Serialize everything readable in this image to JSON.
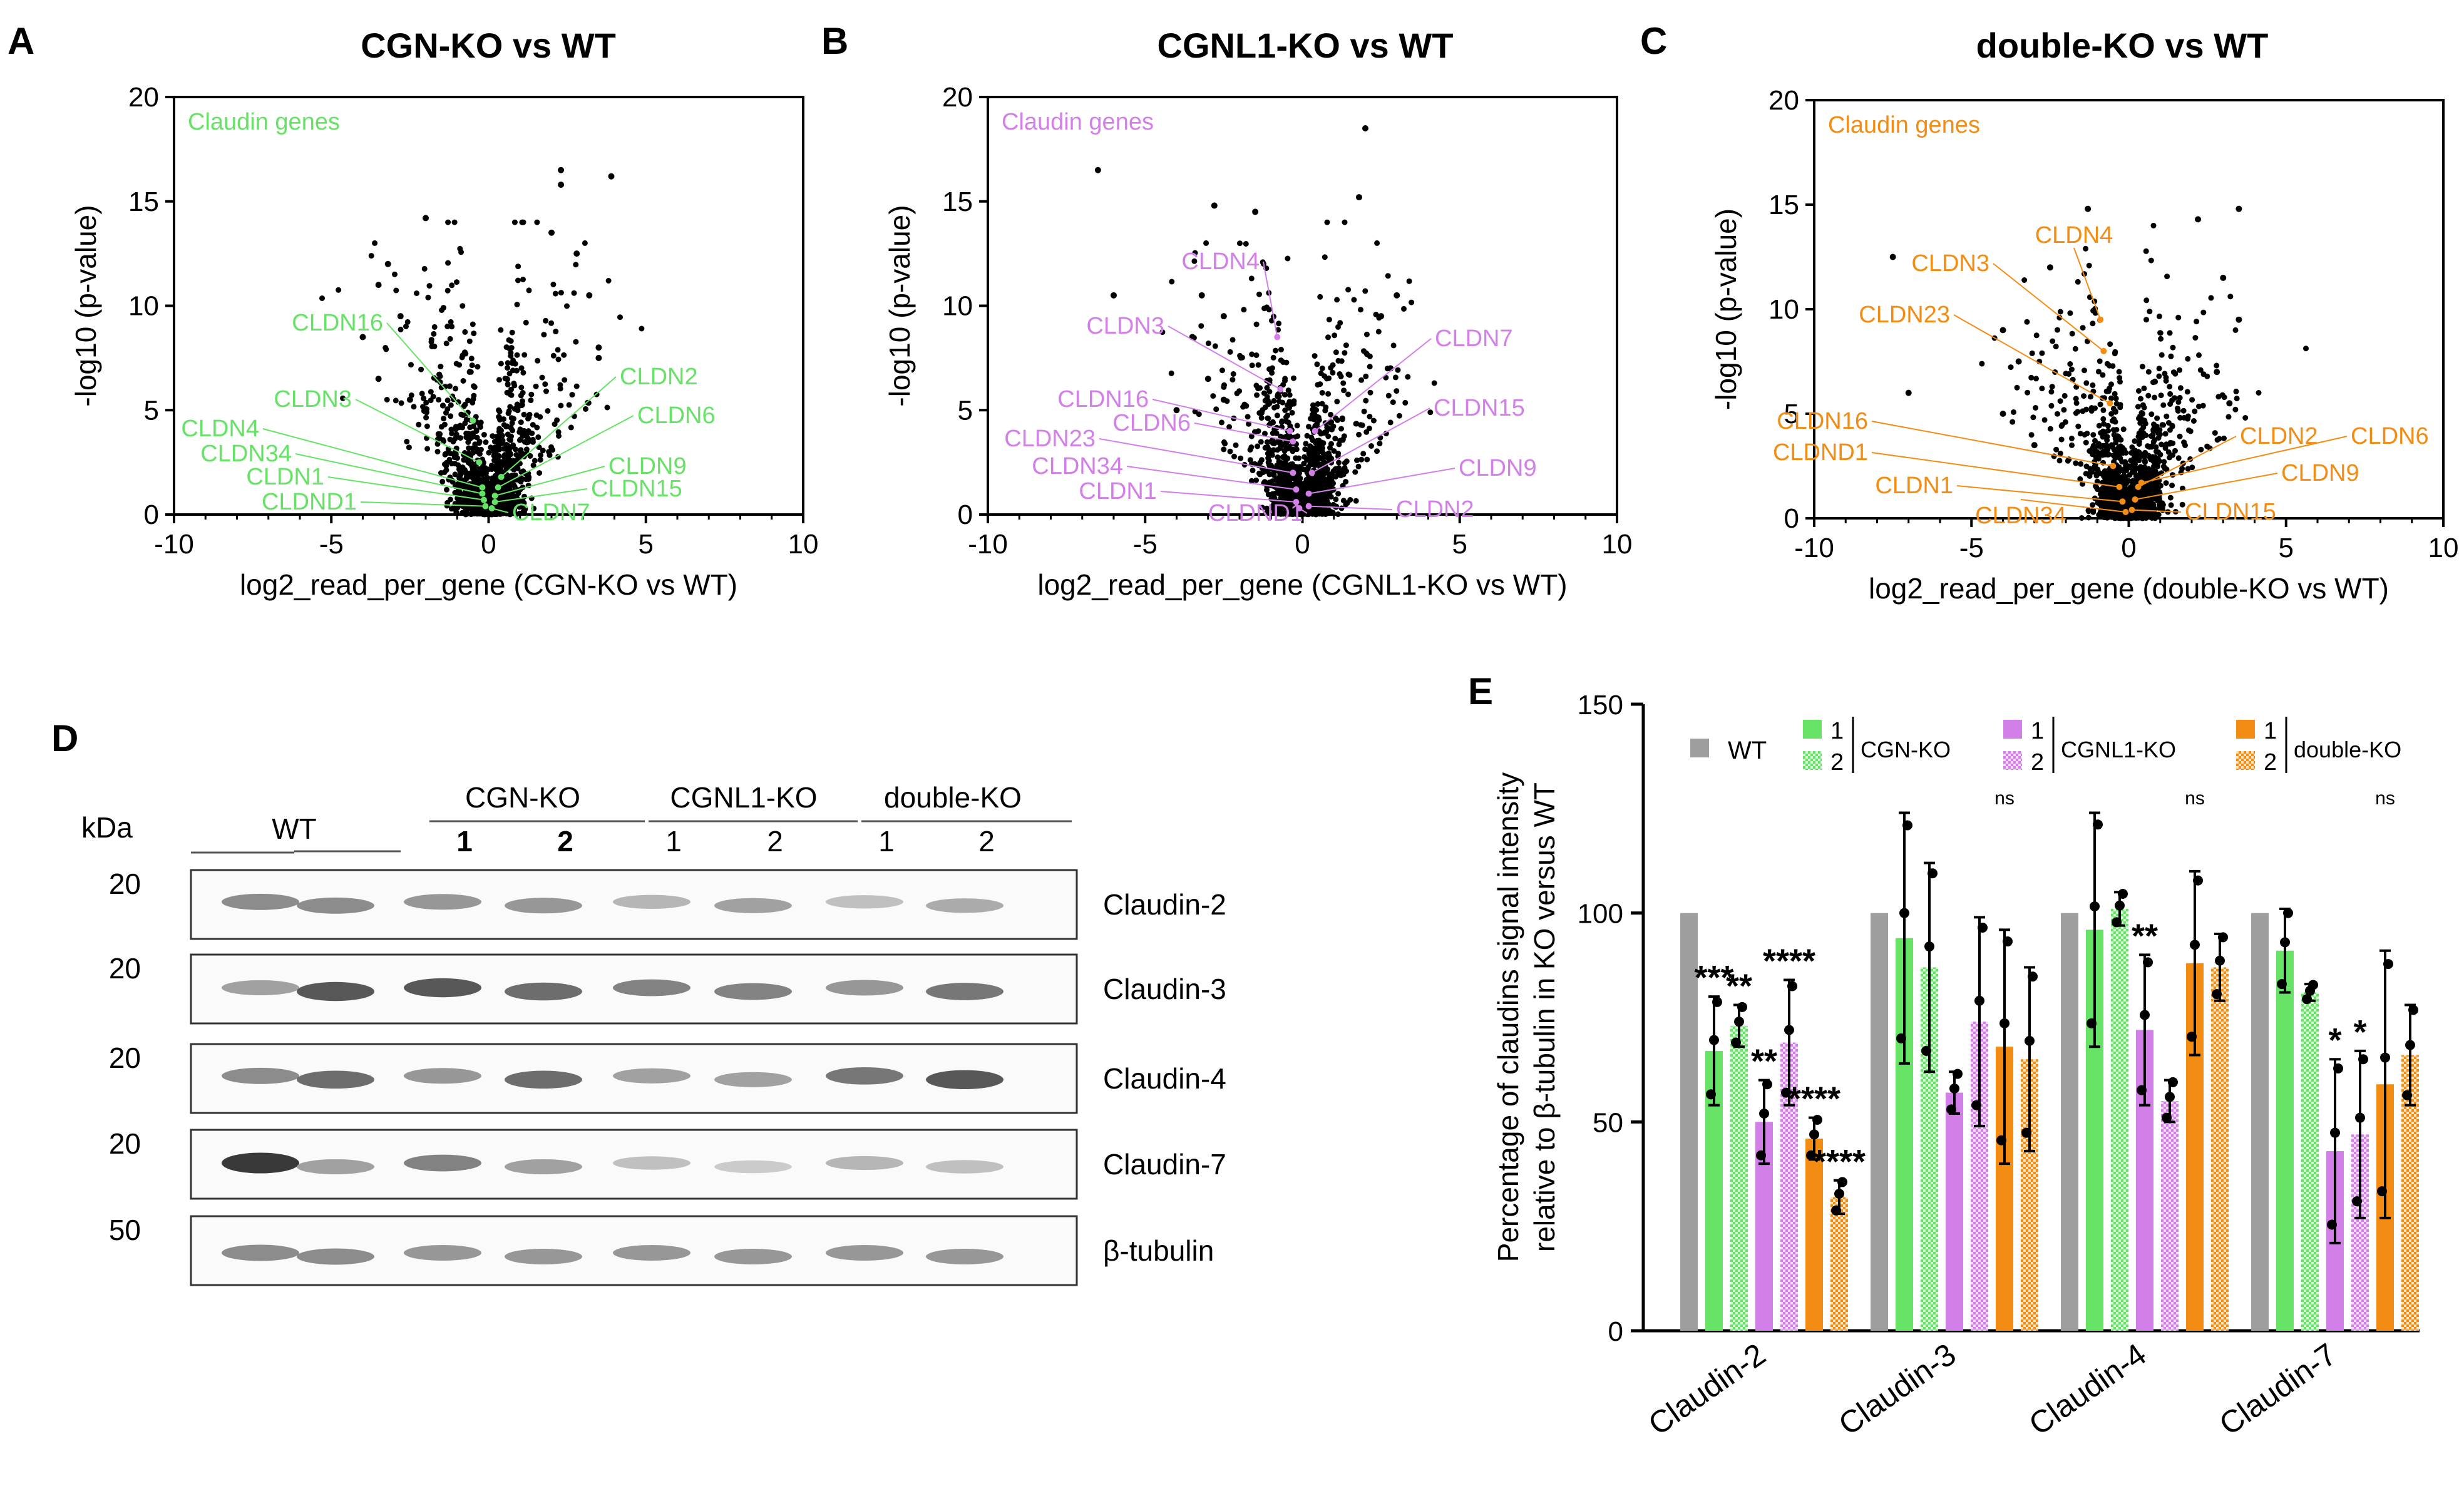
{
  "panels": {
    "A": "A",
    "B": "B",
    "C": "C",
    "D": "D",
    "E": "E"
  },
  "chart_data": [
    {
      "type": "scatter",
      "id": "A",
      "title": "CGN-KO vs WT",
      "xlabel": "log2_read_per_gene (CGN-KO vs WT)",
      "ylabel": "-log10 (p-value)",
      "xlim": [
        -10,
        10
      ],
      "ylim": [
        0,
        20
      ],
      "xticks": [
        -10,
        -5,
        0,
        5,
        10
      ],
      "yticks": [
        0,
        5,
        10,
        15,
        20
      ],
      "legend": "Claudin genes",
      "color": "#66e266",
      "genes": [
        {
          "name": "CLDN16",
          "x": -0.5,
          "y": 4.5
        },
        {
          "name": "CLDN3",
          "x": -0.3,
          "y": 2.5
        },
        {
          "name": "CLDN4",
          "x": -0.2,
          "y": 1.3
        },
        {
          "name": "CLDN34",
          "x": -0.2,
          "y": 1.0
        },
        {
          "name": "CLDN1",
          "x": -0.15,
          "y": 0.7
        },
        {
          "name": "CLDND1",
          "x": -0.1,
          "y": 0.4
        },
        {
          "name": "CLDN2",
          "x": 0.4,
          "y": 1.8
        },
        {
          "name": "CLDN6",
          "x": 0.3,
          "y": 1.3
        },
        {
          "name": "CLDN9",
          "x": 0.2,
          "y": 0.9
        },
        {
          "name": "CLDN15",
          "x": 0.2,
          "y": 0.6
        },
        {
          "name": "CLDN7",
          "x": 0.1,
          "y": 0.3
        }
      ],
      "outliers": [
        [
          2.3,
          16.5
        ],
        [
          3.9,
          16.2
        ],
        [
          2.3,
          15.8
        ],
        [
          -2.0,
          14.2
        ],
        [
          2.0,
          13.5
        ],
        [
          -3.2,
          12.0
        ],
        [
          2.8,
          12.5
        ],
        [
          -3.5,
          11.0
        ],
        [
          3.2,
          10.5
        ],
        [
          -2.8,
          9.5
        ],
        [
          3.5,
          8.0
        ],
        [
          -4.0,
          8.5
        ],
        [
          -3.5,
          6.5
        ],
        [
          3.5,
          7.5
        ],
        [
          -2.5,
          5.5
        ]
      ]
    },
    {
      "type": "scatter",
      "id": "B",
      "title": "CGNL1-KO vs WT",
      "xlabel": "log2_read_per_gene (CGNL1-KO vs WT)",
      "ylabel": "-log10 (p-value)",
      "xlim": [
        -10,
        10
      ],
      "ylim": [
        0,
        20
      ],
      "xticks": [
        -10,
        -5,
        0,
        5,
        10
      ],
      "yticks": [
        0,
        5,
        10,
        15,
        20
      ],
      "legend": "Claudin genes",
      "color": "#d27fe8",
      "genes": [
        {
          "name": "CLDN4",
          "x": -0.8,
          "y": 8.5
        },
        {
          "name": "CLDN3",
          "x": -0.7,
          "y": 6.0
        },
        {
          "name": "CLDN16",
          "x": -0.4,
          "y": 4.0
        },
        {
          "name": "CLDN6",
          "x": -0.3,
          "y": 3.5
        },
        {
          "name": "CLDN23",
          "x": -0.3,
          "y": 2.0
        },
        {
          "name": "CLDN34",
          "x": -0.2,
          "y": 1.2
        },
        {
          "name": "CLDN1",
          "x": -0.2,
          "y": 0.6
        },
        {
          "name": "CLDND1",
          "x": -0.1,
          "y": 0.3
        },
        {
          "name": "CLDN7",
          "x": 0.4,
          "y": 4.0
        },
        {
          "name": "CLDN15",
          "x": 0.3,
          "y": 2.0
        },
        {
          "name": "CLDN9",
          "x": 0.2,
          "y": 1.0
        },
        {
          "name": "CLDN2",
          "x": 0.2,
          "y": 0.4
        }
      ],
      "outliers": [
        [
          2.0,
          18.5
        ],
        [
          -6.5,
          16.5
        ],
        [
          1.8,
          15.2
        ],
        [
          -2.8,
          14.8
        ],
        [
          -1.5,
          14.5
        ],
        [
          -6.0,
          10.5
        ],
        [
          -3.2,
          10.5
        ],
        [
          3.0,
          10.5
        ],
        [
          -2.5,
          9.5
        ],
        [
          2.5,
          9.5
        ],
        [
          -3.5,
          8.5
        ],
        [
          2.8,
          7.0
        ],
        [
          -3.0,
          6.5
        ],
        [
          -2.5,
          5.5
        ],
        [
          -4.0,
          5.0
        ]
      ]
    },
    {
      "type": "scatter",
      "id": "C",
      "title": "double-KO vs WT",
      "xlabel": "log2_read_per_gene (double-KO vs WT)",
      "ylabel": "-log10 (p-value)",
      "xlim": [
        -10,
        10
      ],
      "ylim": [
        0,
        20
      ],
      "xticks": [
        -10,
        -5,
        0,
        5,
        10
      ],
      "yticks": [
        0,
        5,
        10,
        15,
        20
      ],
      "legend": "Claudin genes",
      "color": "#f28c13",
      "genes": [
        {
          "name": "CLDN3",
          "x": -0.8,
          "y": 8.0
        },
        {
          "name": "CLDN4",
          "x": -0.9,
          "y": 9.5
        },
        {
          "name": "CLDN23",
          "x": -0.6,
          "y": 5.5
        },
        {
          "name": "CLDN16",
          "x": -0.5,
          "y": 2.5
        },
        {
          "name": "CLDND1",
          "x": -0.3,
          "y": 1.5
        },
        {
          "name": "CLDN1",
          "x": -0.2,
          "y": 0.8
        },
        {
          "name": "CLDN34",
          "x": -0.1,
          "y": 0.3
        },
        {
          "name": "CLDN2",
          "x": 0.3,
          "y": 1.5
        },
        {
          "name": "CLDN6",
          "x": 0.4,
          "y": 1.7
        },
        {
          "name": "CLDN9",
          "x": 0.2,
          "y": 0.9
        },
        {
          "name": "CLDN15",
          "x": 0.1,
          "y": 0.4
        }
      ],
      "outliers": [
        [
          -1.3,
          14.8
        ],
        [
          3.5,
          14.8
        ],
        [
          2.2,
          14.3
        ],
        [
          -7.5,
          12.5
        ],
        [
          -2.5,
          12.0
        ],
        [
          3.0,
          11.5
        ],
        [
          -4.0,
          9.0
        ],
        [
          3.5,
          9.5
        ],
        [
          -3.5,
          7.5
        ],
        [
          2.8,
          7.0
        ],
        [
          -7.0,
          6.0
        ],
        [
          -4.0,
          5.0
        ],
        [
          3.2,
          5.5
        ],
        [
          -3.0,
          3.5
        ]
      ]
    },
    {
      "type": "bar",
      "id": "E",
      "ylabel": "Percentage of claudins signal intensity relative to β-tubulin in KO versus WT",
      "ylim": [
        0,
        150
      ],
      "yticks": [
        0,
        50,
        100,
        150
      ],
      "categories": [
        "Claudin-2",
        "Claudin-3",
        "Claudin-4",
        "Claudin-7"
      ],
      "series": [
        {
          "name": "WT",
          "group": "",
          "color": "#9e9e9e",
          "pattern": "solid",
          "values": [
            100,
            100,
            100,
            100
          ],
          "err": [
            0,
            0,
            0,
            0
          ]
        },
        {
          "name": "1",
          "group": "CGN-KO",
          "color": "#66e266",
          "pattern": "solid",
          "values": [
            67,
            94,
            96,
            91
          ],
          "err": [
            13,
            30,
            28,
            10
          ]
        },
        {
          "name": "2",
          "group": "CGN-KO",
          "color": "#66e266",
          "pattern": "checker",
          "values": [
            73,
            87,
            101,
            81
          ],
          "err": [
            5,
            25,
            4,
            2
          ]
        },
        {
          "name": "1",
          "group": "CGNL1-KO",
          "color": "#d27fe8",
          "pattern": "solid",
          "values": [
            50,
            57,
            72,
            43
          ],
          "err": [
            10,
            5,
            18,
            22
          ]
        },
        {
          "name": "2",
          "group": "CGNL1-KO",
          "color": "#d27fe8",
          "pattern": "checker",
          "values": [
            69,
            74,
            55,
            47
          ],
          "err": [
            15,
            25,
            5,
            20
          ]
        },
        {
          "name": "1",
          "group": "double-KO",
          "color": "#f28c13",
          "pattern": "solid",
          "values": [
            46,
            68,
            88,
            59
          ],
          "err": [
            5,
            28,
            22,
            32
          ]
        },
        {
          "name": "2",
          "group": "double-KO",
          "color": "#f28c13",
          "pattern": "checker",
          "values": [
            32,
            65,
            87,
            66
          ],
          "err": [
            4,
            22,
            8,
            12
          ]
        }
      ],
      "significance": [
        [
          "",
          "***",
          "**",
          "**",
          "****",
          "****",
          "****"
        ],
        [
          "",
          "",
          "",
          "",
          "",
          "ns",
          ""
        ],
        [
          "",
          "",
          "",
          "**",
          "",
          "ns",
          ""
        ],
        [
          "",
          "",
          "",
          "*",
          "*",
          "ns",
          ""
        ]
      ],
      "legend": {
        "wt": "WT",
        "n1": "1",
        "n2": "2",
        "g1": "CGN-KO",
        "g2": "CGNL1-KO",
        "g3": "double-KO"
      }
    }
  ],
  "blot": {
    "kda": "kDa",
    "groups": [
      {
        "label": "WT",
        "lanes": []
      },
      {
        "label": "CGN-KO",
        "lanes": [
          "1",
          "2"
        ]
      },
      {
        "label": "CGNL1-KO",
        "lanes": [
          "1",
          "2"
        ]
      },
      {
        "label": "double-KO",
        "lanes": [
          "1",
          "2"
        ]
      }
    ],
    "rows": [
      {
        "mw": "20",
        "protein": "Claudin-2"
      },
      {
        "mw": "20",
        "protein": "Claudin-3"
      },
      {
        "mw": "20",
        "protein": "Claudin-4"
      },
      {
        "mw": "20",
        "protein": "Claudin-7"
      },
      {
        "mw": "50",
        "protein": "β-tubulin"
      }
    ]
  }
}
